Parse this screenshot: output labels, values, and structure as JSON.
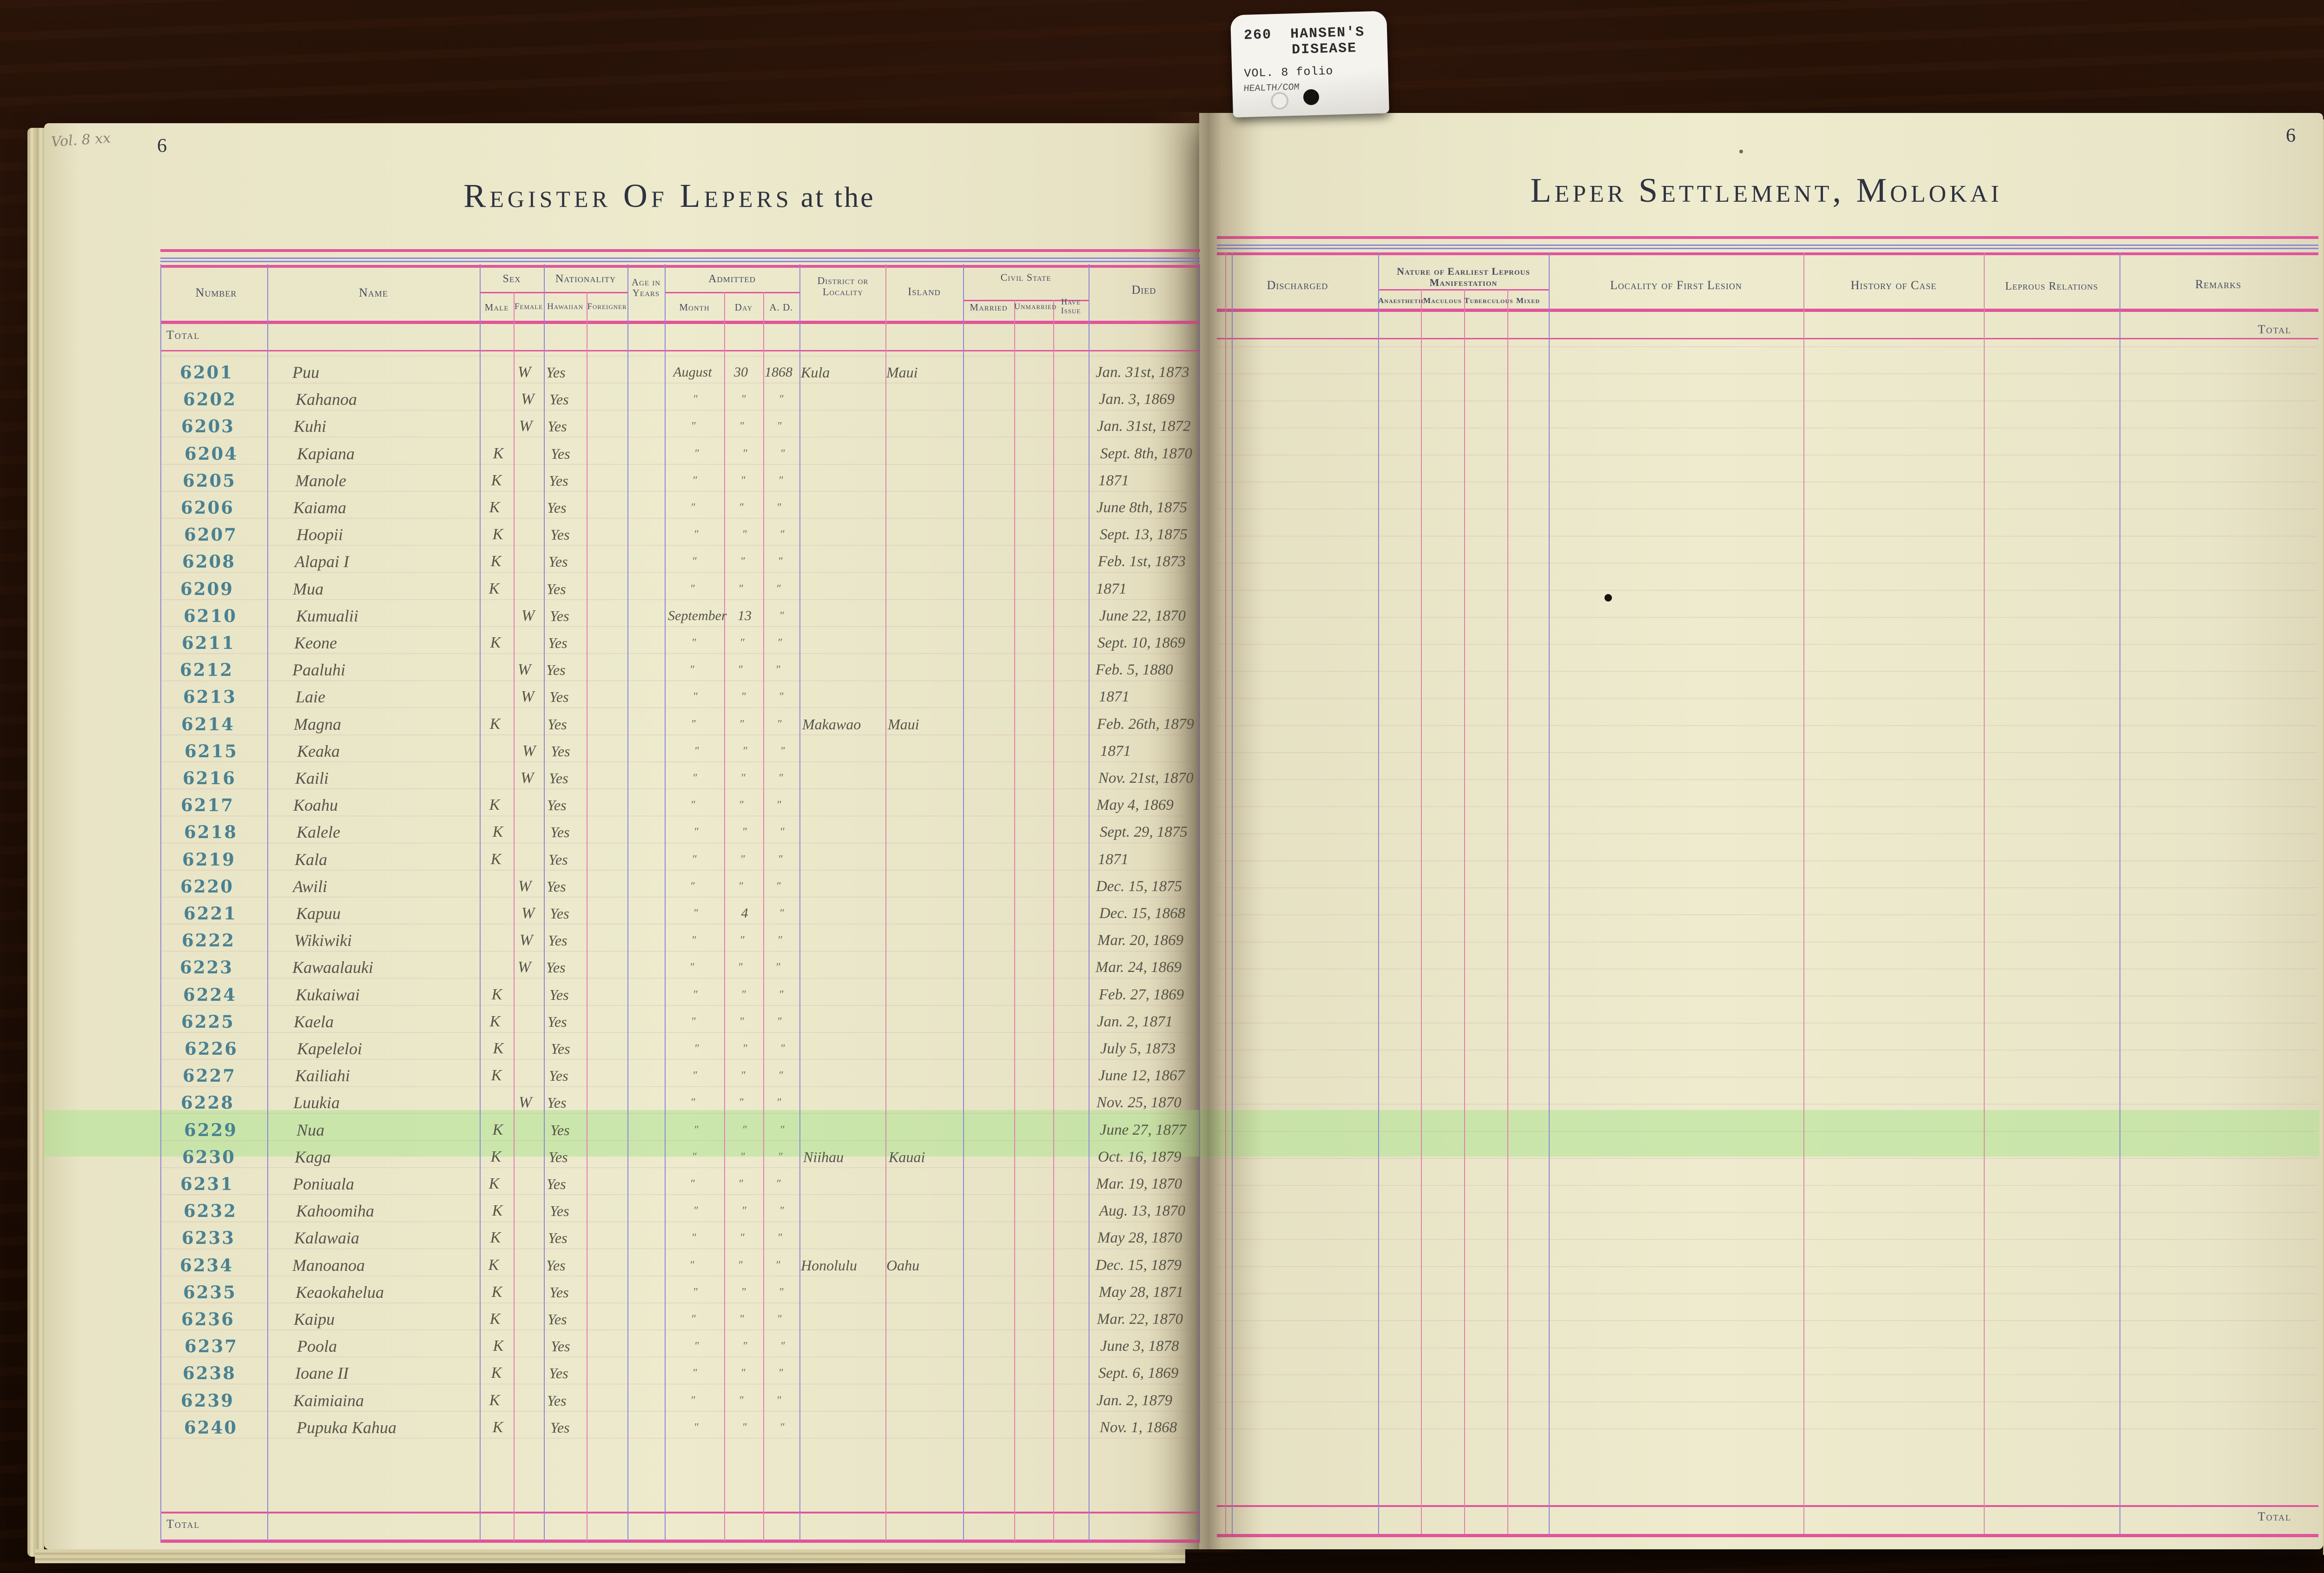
{
  "tab": {
    "number": "260",
    "line1": "HANSEN'S",
    "line2": "DISEASE",
    "line3": "VOL. 8 folio",
    "line4": "HEALTH/COM"
  },
  "left_page": {
    "page_number": "6",
    "margin_note": "Vol. 8 xx",
    "title_main": "Register Of Lepers",
    "title_tail": "at the",
    "total_top": "Total",
    "total_bottom": "Total",
    "columns": {
      "number": "Number",
      "name": "Name",
      "sex": "Sex",
      "male": "Male",
      "female": "Female",
      "nationality": "Nationality",
      "hawaiian": "Hawaiian",
      "foreigner": "Foreigner",
      "age": "Age in Years",
      "admitted": "Admitted",
      "month": "Month",
      "day": "Day",
      "ad": "A. D.",
      "district": "District or Locality",
      "island": "Island",
      "civil_state": "Civil State",
      "married": "Married",
      "unmarried": "Unmarried",
      "have_issue": "Have Issue",
      "died": "Died"
    }
  },
  "right_page": {
    "page_number": "6",
    "title": "Leper Settlement, Molokai",
    "total_top": "Total",
    "total_bottom": "Total",
    "columns": {
      "discharged": "Discharged",
      "manifestation": "Nature of Earliest Leprous Manifestation",
      "anaesthetic": "Anaesthetic",
      "maculous": "Maculous",
      "tuberculous": "Tuberculous",
      "mixed": "Mixed",
      "locality": "Locality of First Lesion",
      "history": "History of Case",
      "relations": "Leprous Relations",
      "remarks": "Remarks"
    }
  },
  "colors": {
    "paper": "#ece8cc",
    "rule_pink": "#e0559b",
    "rule_blue": "#8e86d8",
    "rule_red": "#d88aa6",
    "stamp_ink": "#4a8192",
    "hand_ink": "#57544a",
    "header_ink": "#454b60",
    "highlight": "rgba(170,228,140,0.5)"
  },
  "rows": [
    {
      "number": "6201",
      "name": "Puu",
      "sex": "W",
      "hawaiian": "Yes",
      "month": "August",
      "day": "30",
      "ad": "1868",
      "district": "Kula",
      "island": "Maui",
      "died": "Jan. 31st, 1873"
    },
    {
      "number": "6202",
      "name": "Kahanoa",
      "sex": "W",
      "hawaiian": "Yes",
      "month": "″",
      "day": "″",
      "ad": "″",
      "died": "Jan. 3, 1869"
    },
    {
      "number": "6203",
      "name": "Kuhi",
      "sex": "W",
      "hawaiian": "Yes",
      "month": "″",
      "day": "″",
      "ad": "″",
      "died": "Jan. 31st, 1872"
    },
    {
      "number": "6204",
      "name": "Kapiana",
      "sex": "K",
      "hawaiian": "Yes",
      "month": "″",
      "day": "″",
      "ad": "″",
      "died": "Sept. 8th, 1870"
    },
    {
      "number": "6205",
      "name": "Manole",
      "sex": "K",
      "hawaiian": "Yes",
      "month": "″",
      "day": "″",
      "ad": "″",
      "died": "1871"
    },
    {
      "number": "6206",
      "name": "Kaiama",
      "sex": "K",
      "hawaiian": "Yes",
      "month": "″",
      "day": "″",
      "ad": "″",
      "died": "June 8th, 1875"
    },
    {
      "number": "6207",
      "name": "Hoopii",
      "sex": "K",
      "hawaiian": "Yes",
      "month": "″",
      "day": "″",
      "ad": "″",
      "died": "Sept. 13, 1875"
    },
    {
      "number": "6208",
      "name": "Alapai I",
      "sex": "K",
      "hawaiian": "Yes",
      "month": "″",
      "day": "″",
      "ad": "″",
      "died": "Feb. 1st, 1873"
    },
    {
      "number": "6209",
      "name": "Mua",
      "sex": "K",
      "hawaiian": "Yes",
      "month": "″",
      "day": "″",
      "ad": "″",
      "died": "1871"
    },
    {
      "number": "6210",
      "name": "Kumualii",
      "sex": "W",
      "hawaiian": "Yes",
      "month": "September",
      "day": "13",
      "ad": "″",
      "died": "June 22, 1870"
    },
    {
      "number": "6211",
      "name": "Keone",
      "sex": "K",
      "hawaiian": "Yes",
      "month": "″",
      "day": "″",
      "ad": "″",
      "died": "Sept. 10, 1869"
    },
    {
      "number": "6212",
      "name": "Paaluhi",
      "sex": "W",
      "hawaiian": "Yes",
      "month": "″",
      "day": "″",
      "ad": "″",
      "died": "Feb. 5, 1880"
    },
    {
      "number": "6213",
      "name": "Laie",
      "sex": "W",
      "hawaiian": "Yes",
      "month": "″",
      "day": "″",
      "ad": "″",
      "died": "1871"
    },
    {
      "number": "6214",
      "name": "Magna",
      "sex": "K",
      "hawaiian": "Yes",
      "month": "″",
      "day": "″",
      "ad": "″",
      "district": "Makawao",
      "island": "Maui",
      "died": "Feb. 26th, 1879"
    },
    {
      "number": "6215",
      "name": "Keaka",
      "sex": "W",
      "hawaiian": "Yes",
      "month": "″",
      "day": "″",
      "ad": "″",
      "died": "1871"
    },
    {
      "number": "6216",
      "name": "Kaili",
      "sex": "W",
      "hawaiian": "Yes",
      "month": "″",
      "day": "″",
      "ad": "″",
      "died": "Nov. 21st, 1870"
    },
    {
      "number": "6217",
      "name": "Koahu",
      "sex": "K",
      "hawaiian": "Yes",
      "month": "″",
      "day": "″",
      "ad": "″",
      "died": "May 4, 1869"
    },
    {
      "number": "6218",
      "name": "Kalele",
      "sex": "K",
      "hawaiian": "Yes",
      "month": "″",
      "day": "″",
      "ad": "″",
      "died": "Sept. 29, 1875"
    },
    {
      "number": "6219",
      "name": "Kala",
      "sex": "K",
      "hawaiian": "Yes",
      "month": "″",
      "day": "″",
      "ad": "″",
      "died": "1871"
    },
    {
      "number": "6220",
      "name": "Awili",
      "sex": "W",
      "hawaiian": "Yes",
      "month": "″",
      "day": "″",
      "ad": "″",
      "died": "Dec. 15, 1875"
    },
    {
      "number": "6221",
      "name": "Kapuu",
      "sex": "W",
      "hawaiian": "Yes",
      "month": "″",
      "day": "4",
      "ad": "″",
      "died": "Dec. 15, 1868"
    },
    {
      "number": "6222",
      "name": "Wikiwiki",
      "sex": "W",
      "hawaiian": "Yes",
      "month": "″",
      "day": "″",
      "ad": "″",
      "died": "Mar. 20, 1869"
    },
    {
      "number": "6223",
      "name": "Kawaalauki",
      "sex": "W",
      "hawaiian": "Yes",
      "month": "″",
      "day": "″",
      "ad": "″",
      "died": "Mar. 24, 1869"
    },
    {
      "number": "6224",
      "name": "Kukaiwai",
      "sex": "K",
      "hawaiian": "Yes",
      "month": "″",
      "day": "″",
      "ad": "″",
      "died": "Feb. 27, 1869"
    },
    {
      "number": "6225",
      "name": "Kaela",
      "sex": "K",
      "hawaiian": "Yes",
      "month": "″",
      "day": "″",
      "ad": "″",
      "died": "Jan. 2, 1871"
    },
    {
      "number": "6226",
      "name": "Kapeleloi",
      "sex": "K",
      "hawaiian": "Yes",
      "month": "″",
      "day": "″",
      "ad": "″",
      "died": "July 5, 1873"
    },
    {
      "number": "6227",
      "name": "Kailiahi",
      "sex": "K",
      "hawaiian": "Yes",
      "month": "″",
      "day": "″",
      "ad": "″",
      "died": "June 12, 1867"
    },
    {
      "number": "6228",
      "name": "Luukia",
      "sex": "W",
      "hawaiian": "Yes",
      "month": "″",
      "day": "″",
      "ad": "″",
      "died": "Nov. 25, 1870"
    },
    {
      "number": "6229",
      "name": "Nua",
      "sex": "K",
      "hawaiian": "Yes",
      "month": "″",
      "day": "″",
      "ad": "″",
      "died": "June 27, 1877",
      "highlight": true
    },
    {
      "number": "6230",
      "name": "Kaga",
      "sex": "K",
      "hawaiian": "Yes",
      "month": "″",
      "day": "″",
      "ad": "″",
      "district": "Niihau",
      "island": "Kauai",
      "died": "Oct. 16, 1879"
    },
    {
      "number": "6231",
      "name": "Poniuala",
      "sex": "K",
      "hawaiian": "Yes",
      "month": "″",
      "day": "″",
      "ad": "″",
      "died": "Mar. 19, 1870"
    },
    {
      "number": "6232",
      "name": "Kahoomiha",
      "sex": "K",
      "hawaiian": "Yes",
      "month": "″",
      "day": "″",
      "ad": "″",
      "died": "Aug. 13, 1870"
    },
    {
      "number": "6233",
      "name": "Kalawaia",
      "sex": "K",
      "hawaiian": "Yes",
      "month": "″",
      "day": "″",
      "ad": "″",
      "died": "May 28, 1870"
    },
    {
      "number": "6234",
      "name": "Manoanoa",
      "sex": "K",
      "hawaiian": "Yes",
      "month": "″",
      "day": "″",
      "ad": "″",
      "district": "Honolulu",
      "island": "Oahu",
      "died": "Dec. 15, 1879"
    },
    {
      "number": "6235",
      "name": "Keaokahelua",
      "sex": "K",
      "hawaiian": "Yes",
      "month": "″",
      "day": "″",
      "ad": "″",
      "died": "May 28, 1871"
    },
    {
      "number": "6236",
      "name": "Kaipu",
      "sex": "K",
      "hawaiian": "Yes",
      "month": "″",
      "day": "″",
      "ad": "″",
      "died": "Mar. 22, 1870"
    },
    {
      "number": "6237",
      "name": "Poola",
      "sex": "K",
      "hawaiian": "Yes",
      "month": "″",
      "day": "″",
      "ad": "″",
      "died": "June 3, 1878"
    },
    {
      "number": "6238",
      "name": "Ioane II",
      "sex": "K",
      "hawaiian": "Yes",
      "month": "″",
      "day": "″",
      "ad": "″",
      "died": "Sept. 6, 1869"
    },
    {
      "number": "6239",
      "name": "Kaimiaina",
      "sex": "K",
      "hawaiian": "Yes",
      "month": "″",
      "day": "″",
      "ad": "″",
      "died": "Jan. 2, 1879"
    },
    {
      "number": "6240",
      "name": "Pupuka Kahua",
      "sex": "K",
      "hawaiian": "Yes",
      "month": "″",
      "day": "″",
      "ad": "″",
      "died": "Nov. 1, 1868"
    }
  ]
}
